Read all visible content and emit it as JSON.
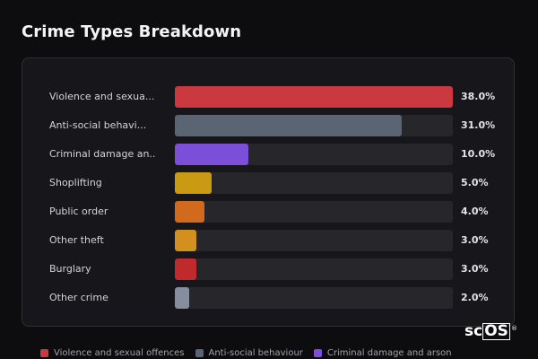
{
  "title": "Crime Types Breakdown",
  "logo": {
    "text": "sc",
    "boxed": "OS",
    "mark": "®"
  },
  "chart_data": {
    "type": "bar",
    "orientation": "horizontal",
    "title": "Crime Types Breakdown",
    "value_unit": "%",
    "xlim": [
      0,
      38
    ],
    "categories": [
      "Violence and sexual offences",
      "Anti-social behaviour",
      "Criminal damage and arson",
      "Shoplifting",
      "Public order",
      "Other theft",
      "Burglary",
      "Other crime"
    ],
    "labels": [
      "Violence and sexua...",
      "Anti-social behavi...",
      "Criminal damage an...",
      "Shoplifting",
      "Public order",
      "Other theft",
      "Burglary",
      "Other crime"
    ],
    "values": [
      38.0,
      31.0,
      10.0,
      5.0,
      4.0,
      3.0,
      3.0,
      2.0
    ],
    "value_labels": [
      "38.0%",
      "31.0%",
      "10.0%",
      "5.0%",
      "4.0%",
      "3.0%",
      "3.0%",
      "2.0%"
    ],
    "colors": [
      "#c9393f",
      "#5b6472",
      "#7c4fd9",
      "#c99a12",
      "#d26a1e",
      "#d3901e",
      "#bf2a2d",
      "#868e9e"
    ],
    "legend": {
      "placement": "bottom",
      "entries": [
        {
          "label": "Violence and sexual offences",
          "color": "#c9393f"
        },
        {
          "label": "Anti-social behaviour",
          "color": "#5b6472"
        },
        {
          "label": "Criminal damage and arson",
          "color": "#7c4fd9"
        }
      ]
    }
  }
}
